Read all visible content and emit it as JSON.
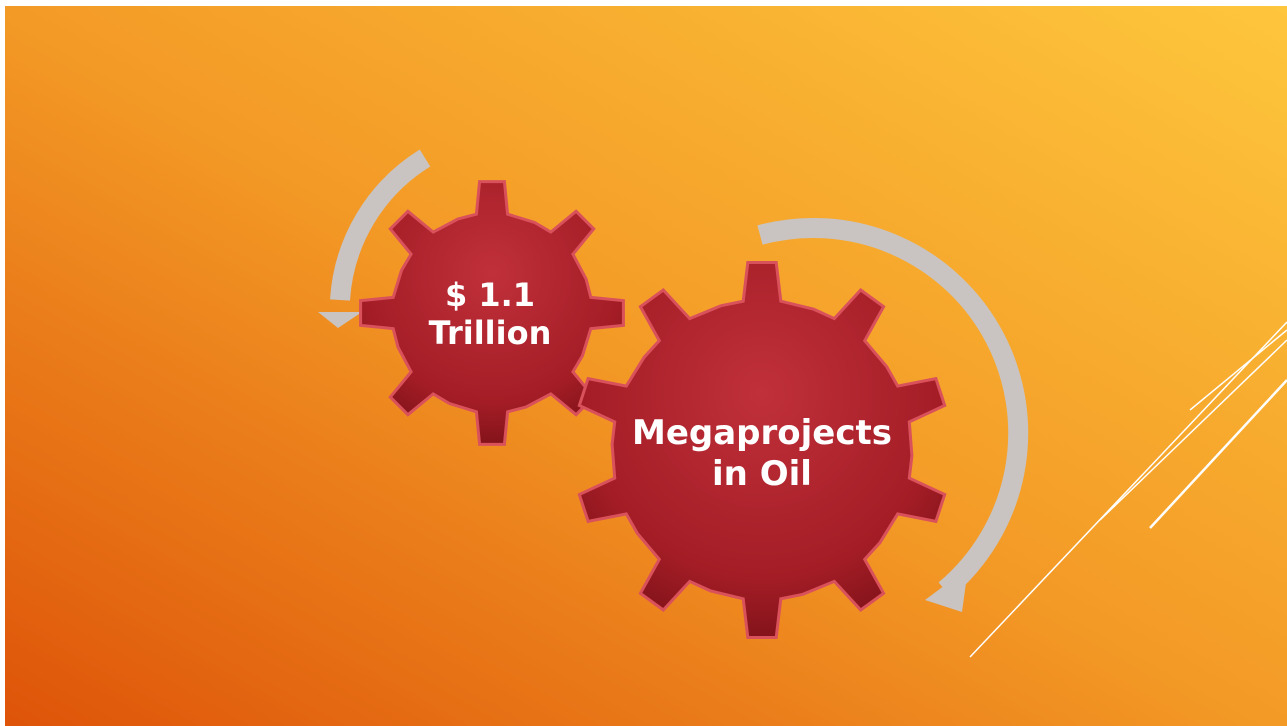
{
  "nodes": [
    {
      "lines": [
        "$ 1.1",
        "Trillion"
      ]
    },
    {
      "lines": [
        "Megaprojects",
        "in Oil"
      ]
    }
  ]
}
